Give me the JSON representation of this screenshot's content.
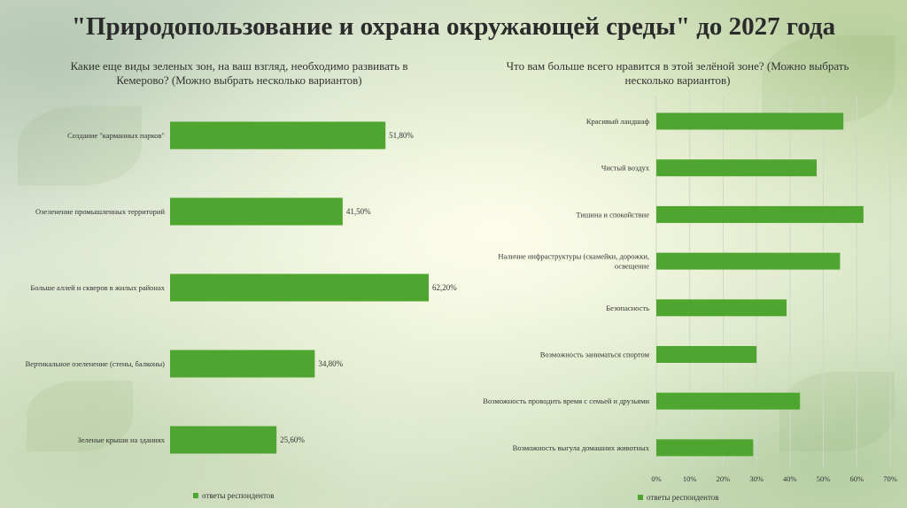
{
  "title": "\"Природопользование и охрана окружающей среды\" до 2027 года",
  "colors": {
    "bar": "#4ea52f",
    "label": "#333333",
    "grid": "#cfd8c6"
  },
  "chart_data": [
    {
      "type": "bar",
      "orientation": "horizontal",
      "title": "Какие еще виды зеленых зон, на ваш взгляд, необходимо развивать в Кемерово? (Можно выбрать несколько вариантов)",
      "categories": [
        "Создание \"карманных парков\"",
        "Озеленение промышленных территорий",
        "Больше аллей и скверов в жилых районах",
        "Вертикальное озеленение (стены, балконы)",
        "Зеленые крыши на зданиях"
      ],
      "series": [
        {
          "name": "ответы респондентов",
          "values": [
            51.8,
            41.5,
            62.2,
            34.8,
            25.6
          ]
        }
      ],
      "data_labels": [
        "51,80%",
        "41,50%",
        "62,20%",
        "34,80%",
        "25,60%"
      ],
      "xlim": [
        0,
        100
      ],
      "legend": "bottom-left",
      "grid": false
    },
    {
      "type": "bar",
      "orientation": "horizontal",
      "title": "Что вам больше всего нравится в этой зелёной зоне? (Можно выбрать несколько вариантов)",
      "categories": [
        "Красивый ландшаф",
        "Чистый воздух",
        "Тишина и спокойствие",
        "Наличие инфраструктуры (скамейки, дорожки, освещение",
        "Безопасность",
        "Возможность заниматься спортом",
        "Возможность проводить время с семьей и друзьями",
        "Возможность выгула домашних животных"
      ],
      "series": [
        {
          "name": "ответы респондентов",
          "values": [
            56,
            48,
            62,
            55,
            39,
            30,
            43,
            29
          ]
        }
      ],
      "xlim": [
        0,
        70
      ],
      "xticks": [
        "0%",
        "10%",
        "20%",
        "30%",
        "40%",
        "50%",
        "60%",
        "70%"
      ],
      "legend": "bottom",
      "grid": true
    }
  ]
}
